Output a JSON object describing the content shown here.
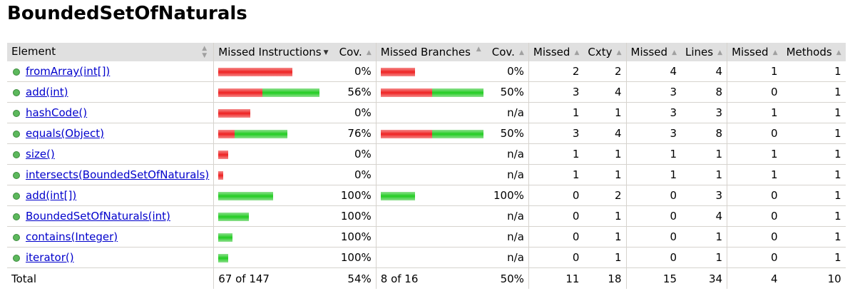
{
  "title": "BoundedSetOfNaturals",
  "headers": {
    "element": "Element",
    "missed_instructions": "Missed Instructions",
    "cov1": "Cov.",
    "missed_branches": "Missed Branches",
    "cov2": "Cov.",
    "missed_cxty": "Missed",
    "cxty": "Cxty",
    "missed_lines": "Missed",
    "lines": "Lines",
    "missed_methods": "Missed",
    "methods": "Methods"
  },
  "colors": {
    "missed": "#e22222",
    "covered": "#22cc22",
    "header_bg": "#e0e0e0",
    "link": "#0000cc"
  },
  "rows": [
    {
      "name": "fromArray(int[])",
      "instr_missed_frac": 1.0,
      "instr_covered_frac": 0.0,
      "instr_scale": 0.73,
      "cov1": "0%",
      "br_missed_frac": 1.0,
      "br_covered_frac": 0.0,
      "br_scale": 0.33,
      "cov2": "0%",
      "missed_cxty": "2",
      "cxty": "2",
      "missed_lines": "4",
      "lines": "4",
      "missed_methods": "1",
      "methods": "1"
    },
    {
      "name": "add(int)",
      "instr_missed_frac": 0.44,
      "instr_covered_frac": 0.56,
      "instr_scale": 1.0,
      "cov1": "56%",
      "br_missed_frac": 0.5,
      "br_covered_frac": 0.5,
      "br_scale": 1.0,
      "cov2": "50%",
      "missed_cxty": "3",
      "cxty": "4",
      "missed_lines": "3",
      "lines": "8",
      "missed_methods": "0",
      "methods": "1"
    },
    {
      "name": "hashCode()",
      "instr_missed_frac": 1.0,
      "instr_covered_frac": 0.0,
      "instr_scale": 0.32,
      "cov1": "0%",
      "br_missed_frac": 0,
      "br_covered_frac": 0,
      "br_scale": 0,
      "cov2": "n/a",
      "missed_cxty": "1",
      "cxty": "1",
      "missed_lines": "3",
      "lines": "3",
      "missed_methods": "1",
      "methods": "1"
    },
    {
      "name": "equals(Object)",
      "instr_missed_frac": 0.24,
      "instr_covered_frac": 0.76,
      "instr_scale": 0.68,
      "cov1": "76%",
      "br_missed_frac": 0.5,
      "br_covered_frac": 0.5,
      "br_scale": 1.0,
      "cov2": "50%",
      "missed_cxty": "3",
      "cxty": "4",
      "missed_lines": "3",
      "lines": "8",
      "missed_methods": "0",
      "methods": "1"
    },
    {
      "name": "size()",
      "instr_missed_frac": 1.0,
      "instr_covered_frac": 0.0,
      "instr_scale": 0.1,
      "cov1": "0%",
      "br_missed_frac": 0,
      "br_covered_frac": 0,
      "br_scale": 0,
      "cov2": "n/a",
      "missed_cxty": "1",
      "cxty": "1",
      "missed_lines": "1",
      "lines": "1",
      "missed_methods": "1",
      "methods": "1"
    },
    {
      "name": "intersects(BoundedSetOfNaturals)",
      "instr_missed_frac": 1.0,
      "instr_covered_frac": 0.0,
      "instr_scale": 0.05,
      "cov1": "0%",
      "br_missed_frac": 0,
      "br_covered_frac": 0,
      "br_scale": 0,
      "cov2": "n/a",
      "missed_cxty": "1",
      "cxty": "1",
      "missed_lines": "1",
      "lines": "1",
      "missed_methods": "1",
      "methods": "1"
    },
    {
      "name": "add(int[])",
      "instr_missed_frac": 0.0,
      "instr_covered_frac": 1.0,
      "instr_scale": 0.54,
      "cov1": "100%",
      "br_missed_frac": 0.0,
      "br_covered_frac": 1.0,
      "br_scale": 0.33,
      "cov2": "100%",
      "missed_cxty": "0",
      "cxty": "2",
      "missed_lines": "0",
      "lines": "3",
      "missed_methods": "0",
      "methods": "1"
    },
    {
      "name": "BoundedSetOfNaturals(int)",
      "instr_missed_frac": 0.0,
      "instr_covered_frac": 1.0,
      "instr_scale": 0.3,
      "cov1": "100%",
      "br_missed_frac": 0,
      "br_covered_frac": 0,
      "br_scale": 0,
      "cov2": "n/a",
      "missed_cxty": "0",
      "cxty": "1",
      "missed_lines": "0",
      "lines": "4",
      "missed_methods": "0",
      "methods": "1"
    },
    {
      "name": "contains(Integer)",
      "instr_missed_frac": 0.0,
      "instr_covered_frac": 1.0,
      "instr_scale": 0.14,
      "cov1": "100%",
      "br_missed_frac": 0,
      "br_covered_frac": 0,
      "br_scale": 0,
      "cov2": "n/a",
      "missed_cxty": "0",
      "cxty": "1",
      "missed_lines": "0",
      "lines": "1",
      "missed_methods": "0",
      "methods": "1"
    },
    {
      "name": "iterator()",
      "instr_missed_frac": 0.0,
      "instr_covered_frac": 1.0,
      "instr_scale": 0.1,
      "cov1": "100%",
      "br_missed_frac": 0,
      "br_covered_frac": 0,
      "br_scale": 0,
      "cov2": "n/a",
      "missed_cxty": "0",
      "cxty": "1",
      "missed_lines": "0",
      "lines": "1",
      "missed_methods": "0",
      "methods": "1"
    }
  ],
  "total": {
    "label": "Total",
    "instructions": "67 of 147",
    "cov1": "54%",
    "branches": "8 of 16",
    "cov2": "50%",
    "missed_cxty": "11",
    "cxty": "18",
    "missed_lines": "15",
    "lines": "34",
    "missed_methods": "4",
    "methods": "10"
  }
}
